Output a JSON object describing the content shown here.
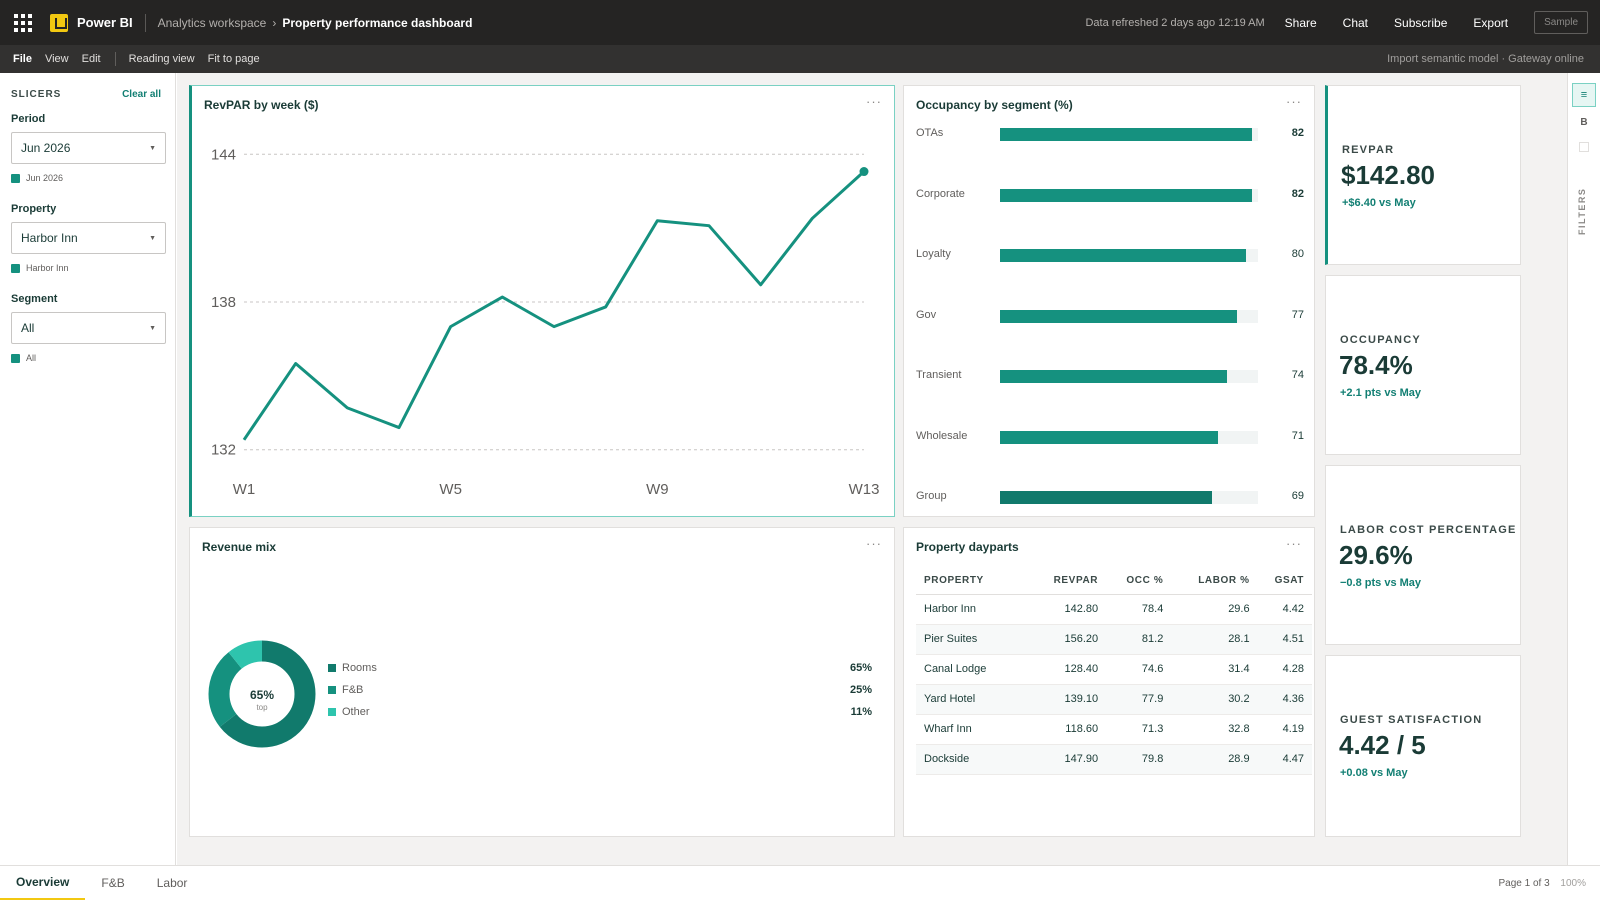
{
  "app": {
    "name": "Power BI",
    "workspace": "Analytics workspace",
    "report": "Property performance dashboard",
    "refreshed": "Data refreshed 2 days ago 12:19 AM",
    "actions": [
      "Share",
      "Chat",
      "Subscribe",
      "Export"
    ],
    "sample": "Sample"
  },
  "toolbar": {
    "items": [
      "File",
      "View",
      "Edit"
    ],
    "reading_view": "Reading view",
    "fit": "Fit to page",
    "status": "Import semantic model · Gateway online"
  },
  "slicers": {
    "title": "SLICERS",
    "clear": "Clear all",
    "groups": [
      {
        "label": "Period",
        "value": "Jun 2026",
        "chip": "Jun 2026"
      },
      {
        "label": "Property",
        "value": "Harbor Inn",
        "chip": "Harbor Inn"
      },
      {
        "label": "Segment",
        "value": "All",
        "chip": "All"
      }
    ]
  },
  "cards": {
    "revpar": {
      "title": "RevPAR by week ($)"
    },
    "occupancy": {
      "title": "Occupancy by segment (%)"
    },
    "revenue_mix": {
      "title": "Revenue mix"
    },
    "dayparts": {
      "title": "Property dayparts"
    }
  },
  "chart_data": [
    {
      "type": "line",
      "title": "RevPAR by week ($)",
      "x": [
        "W1",
        "W2",
        "W3",
        "W4",
        "W5",
        "W6",
        "W7",
        "W8",
        "W9",
        "W10",
        "W11",
        "W12",
        "W13"
      ],
      "xticks": [
        "W1",
        "W5",
        "W9",
        "W13"
      ],
      "series": [
        {
          "values": [
            132.4,
            135.5,
            133.7,
            132.9,
            137.0,
            138.2,
            137.0,
            137.8,
            141.3,
            141.1,
            138.7,
            141.4,
            143.3
          ]
        }
      ],
      "yticks": [
        132,
        138,
        144
      ],
      "ylim": [
        131.5,
        144.5
      ],
      "grid": true,
      "color": "#15917f"
    },
    {
      "type": "bar",
      "title": "Occupancy by segment (%)",
      "categories": [
        "OTAs",
        "Corporate",
        "Loyalty",
        "Gov",
        "Transient",
        "Wholesale",
        "Group"
      ],
      "values": [
        82,
        82,
        80,
        77,
        74,
        71,
        69
      ],
      "xlim": [
        0,
        84
      ],
      "orientation": "horizontal"
    },
    {
      "type": "pie",
      "title": "Revenue mix",
      "center_value": "65%",
      "center_caption": "top",
      "slices": [
        {
          "name": "Rooms",
          "value": 65,
          "label": "65%",
          "color": "#117a6c"
        },
        {
          "name": "F&B",
          "value": 25,
          "label": "25%",
          "color": "#15917f"
        },
        {
          "name": "Other",
          "value": 11,
          "label": "11%",
          "color": "#2ec4ad"
        }
      ]
    },
    {
      "type": "table",
      "title": "Property dayparts",
      "columns": [
        "PROPERTY",
        "REVPAR",
        "OCC %",
        "LABOR %",
        "GSAT"
      ],
      "rows": [
        [
          "Harbor Inn",
          "142.80",
          "78.4",
          "29.6",
          "4.42"
        ],
        [
          "Pier Suites",
          "156.20",
          "81.2",
          "28.1",
          "4.51"
        ],
        [
          "Canal Lodge",
          "128.40",
          "74.6",
          "31.4",
          "4.28"
        ],
        [
          "Yard Hotel",
          "139.10",
          "77.9",
          "30.2",
          "4.36"
        ],
        [
          "Wharf Inn",
          "118.60",
          "71.3",
          "32.8",
          "4.19"
        ],
        [
          "Dockside",
          "147.90",
          "79.8",
          "28.9",
          "4.47"
        ]
      ]
    }
  ],
  "kpis": [
    {
      "label": "REVPAR",
      "value": "$142.80",
      "delta": "+$6.40 vs May"
    },
    {
      "label": "OCCUPANCY",
      "value": "78.4%",
      "delta": "+2.1 pts vs May"
    },
    {
      "label": "LABOR COST PERCENTAGE",
      "value": "29.6%",
      "delta": "−0.8 pts vs May"
    },
    {
      "label": "GUEST SATISFACTION",
      "value": "4.42 / 5",
      "delta": "+0.08 vs May"
    }
  ],
  "rail": {
    "b": "B",
    "filters": "FILTERS"
  },
  "pages": {
    "tabs": [
      "Overview",
      "F&B",
      "Labor"
    ],
    "page_info": "Page 1 of 3",
    "zoom": "100%"
  },
  "colors": {
    "accent": "#15917f",
    "dark": "#1a3b36",
    "brand": "#f2c811"
  }
}
